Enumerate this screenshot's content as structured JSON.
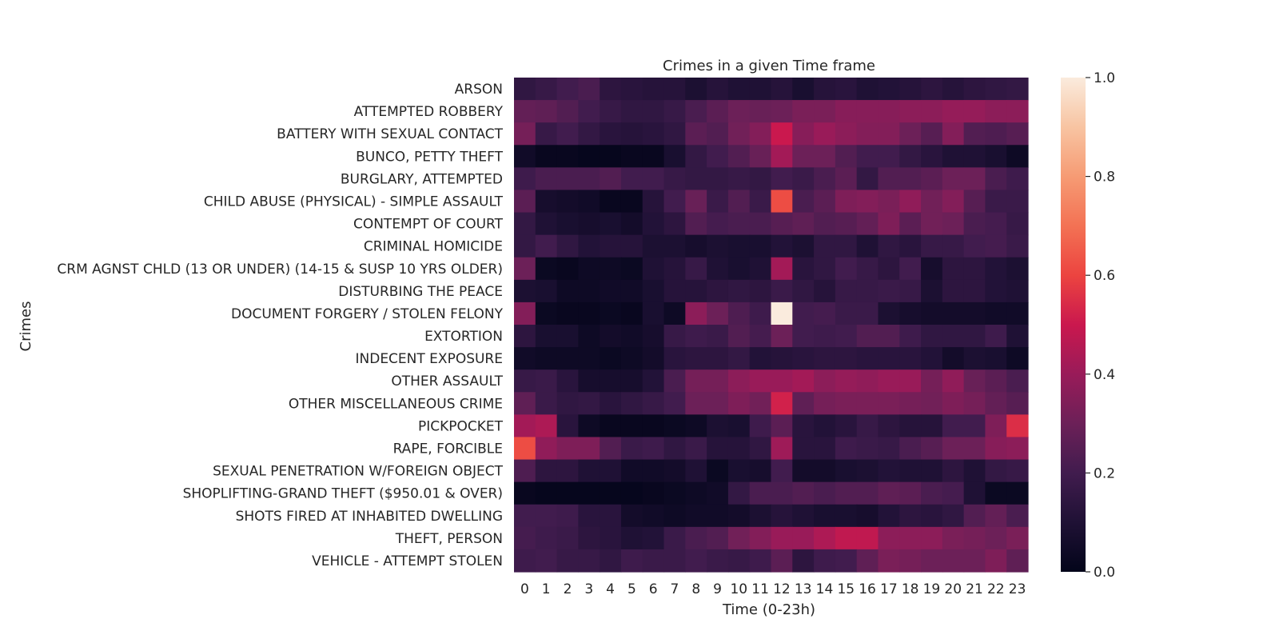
{
  "chart_data": {
    "type": "heatmap",
    "title": "Crimes in a given Time frame",
    "xlabel": "Time (0-23h)",
    "ylabel": "Crimes",
    "x": [
      "0",
      "1",
      "2",
      "3",
      "4",
      "5",
      "6",
      "7",
      "8",
      "9",
      "10",
      "11",
      "12",
      "13",
      "14",
      "15",
      "16",
      "17",
      "18",
      "19",
      "20",
      "21",
      "22",
      "23"
    ],
    "y": [
      "ARSON",
      "ATTEMPTED ROBBERY",
      "BATTERY WITH SEXUAL CONTACT",
      "BUNCO, PETTY THEFT",
      "BURGLARY, ATTEMPTED",
      "CHILD ABUSE (PHYSICAL) - SIMPLE ASSAULT",
      "CONTEMPT OF COURT",
      "CRIMINAL HOMICIDE",
      "CRM AGNST CHLD (13 OR UNDER) (14-15 & SUSP 10 YRS OLDER)",
      "DISTURBING THE PEACE",
      "DOCUMENT FORGERY / STOLEN FELONY",
      "EXTORTION",
      "INDECENT EXPOSURE",
      "OTHER ASSAULT",
      "OTHER MISCELLANEOUS CRIME",
      "PICKPOCKET",
      "RAPE, FORCIBLE",
      "SEXUAL PENETRATION W/FOREIGN OBJECT",
      "SHOPLIFTING-GRAND THEFT ($950.01 & OVER)",
      "SHOTS FIRED AT INHABITED DWELLING",
      "THEFT, PERSON",
      "VEHICLE - ATTEMPT STOLEN"
    ],
    "values": [
      [
        0.15,
        0.17,
        0.2,
        0.22,
        0.14,
        0.13,
        0.12,
        0.12,
        0.09,
        0.12,
        0.1,
        0.1,
        0.12,
        0.08,
        0.12,
        0.13,
        0.1,
        0.11,
        0.12,
        0.14,
        0.12,
        0.14,
        0.15,
        0.16
      ],
      [
        0.28,
        0.27,
        0.24,
        0.2,
        0.17,
        0.15,
        0.15,
        0.17,
        0.22,
        0.26,
        0.3,
        0.29,
        0.3,
        0.33,
        0.33,
        0.36,
        0.36,
        0.36,
        0.37,
        0.37,
        0.39,
        0.39,
        0.37,
        0.37
      ],
      [
        0.32,
        0.17,
        0.2,
        0.16,
        0.13,
        0.12,
        0.13,
        0.15,
        0.26,
        0.24,
        0.31,
        0.35,
        0.5,
        0.36,
        0.4,
        0.37,
        0.35,
        0.35,
        0.3,
        0.25,
        0.35,
        0.24,
        0.23,
        0.25
      ],
      [
        0.05,
        0.02,
        0.02,
        0.01,
        0.01,
        0.02,
        0.02,
        0.08,
        0.16,
        0.2,
        0.24,
        0.29,
        0.42,
        0.3,
        0.3,
        0.24,
        0.2,
        0.2,
        0.16,
        0.13,
        0.1,
        0.1,
        0.08,
        0.04
      ],
      [
        0.19,
        0.22,
        0.22,
        0.22,
        0.24,
        0.2,
        0.2,
        0.17,
        0.16,
        0.16,
        0.17,
        0.16,
        0.2,
        0.18,
        0.22,
        0.26,
        0.16,
        0.24,
        0.24,
        0.26,
        0.3,
        0.3,
        0.22,
        0.19
      ],
      [
        0.26,
        0.07,
        0.06,
        0.05,
        0.02,
        0.02,
        0.12,
        0.2,
        0.29,
        0.18,
        0.24,
        0.18,
        0.62,
        0.22,
        0.26,
        0.34,
        0.35,
        0.33,
        0.38,
        0.31,
        0.35,
        0.25,
        0.18,
        0.18
      ],
      [
        0.16,
        0.1,
        0.08,
        0.07,
        0.08,
        0.06,
        0.11,
        0.14,
        0.24,
        0.21,
        0.22,
        0.22,
        0.25,
        0.27,
        0.24,
        0.25,
        0.28,
        0.34,
        0.26,
        0.31,
        0.3,
        0.22,
        0.21,
        0.17
      ],
      [
        0.16,
        0.2,
        0.15,
        0.11,
        0.12,
        0.12,
        0.09,
        0.09,
        0.07,
        0.09,
        0.08,
        0.08,
        0.11,
        0.09,
        0.15,
        0.15,
        0.1,
        0.15,
        0.13,
        0.17,
        0.17,
        0.2,
        0.21,
        0.18
      ],
      [
        0.3,
        0.03,
        0.02,
        0.04,
        0.04,
        0.03,
        0.1,
        0.12,
        0.17,
        0.1,
        0.08,
        0.1,
        0.42,
        0.13,
        0.15,
        0.2,
        0.17,
        0.14,
        0.2,
        0.07,
        0.14,
        0.14,
        0.11,
        0.09
      ],
      [
        0.09,
        0.08,
        0.04,
        0.04,
        0.05,
        0.05,
        0.08,
        0.12,
        0.12,
        0.14,
        0.15,
        0.14,
        0.18,
        0.15,
        0.12,
        0.17,
        0.17,
        0.18,
        0.17,
        0.09,
        0.14,
        0.14,
        0.11,
        0.1
      ],
      [
        0.35,
        0.03,
        0.02,
        0.02,
        0.03,
        0.02,
        0.08,
        0.04,
        0.37,
        0.3,
        0.23,
        0.19,
        1.0,
        0.2,
        0.21,
        0.18,
        0.18,
        0.09,
        0.07,
        0.06,
        0.06,
        0.06,
        0.05,
        0.05
      ],
      [
        0.14,
        0.08,
        0.08,
        0.04,
        0.06,
        0.05,
        0.07,
        0.17,
        0.19,
        0.18,
        0.24,
        0.21,
        0.3,
        0.2,
        0.19,
        0.2,
        0.24,
        0.24,
        0.19,
        0.15,
        0.15,
        0.15,
        0.19,
        0.1
      ],
      [
        0.05,
        0.04,
        0.04,
        0.04,
        0.03,
        0.04,
        0.06,
        0.13,
        0.14,
        0.14,
        0.16,
        0.11,
        0.12,
        0.13,
        0.14,
        0.14,
        0.13,
        0.13,
        0.13,
        0.11,
        0.06,
        0.09,
        0.08,
        0.04
      ],
      [
        0.17,
        0.18,
        0.13,
        0.07,
        0.07,
        0.07,
        0.11,
        0.22,
        0.32,
        0.32,
        0.37,
        0.4,
        0.4,
        0.42,
        0.37,
        0.39,
        0.38,
        0.4,
        0.4,
        0.32,
        0.38,
        0.29,
        0.26,
        0.22
      ],
      [
        0.27,
        0.18,
        0.15,
        0.16,
        0.13,
        0.15,
        0.17,
        0.2,
        0.3,
        0.3,
        0.34,
        0.31,
        0.52,
        0.27,
        0.32,
        0.33,
        0.33,
        0.33,
        0.32,
        0.31,
        0.34,
        0.32,
        0.28,
        0.25
      ],
      [
        0.42,
        0.44,
        0.13,
        0.04,
        0.02,
        0.02,
        0.02,
        0.03,
        0.04,
        0.09,
        0.08,
        0.19,
        0.26,
        0.13,
        0.11,
        0.13,
        0.17,
        0.14,
        0.12,
        0.12,
        0.2,
        0.2,
        0.34,
        0.55
      ],
      [
        0.62,
        0.38,
        0.34,
        0.34,
        0.24,
        0.18,
        0.19,
        0.15,
        0.18,
        0.12,
        0.12,
        0.15,
        0.41,
        0.13,
        0.13,
        0.19,
        0.18,
        0.17,
        0.22,
        0.25,
        0.3,
        0.3,
        0.36,
        0.37
      ],
      [
        0.23,
        0.14,
        0.14,
        0.1,
        0.1,
        0.05,
        0.05,
        0.06,
        0.1,
        0.03,
        0.08,
        0.07,
        0.2,
        0.06,
        0.06,
        0.08,
        0.09,
        0.11,
        0.1,
        0.1,
        0.14,
        0.1,
        0.16,
        0.17
      ],
      [
        0.02,
        0.01,
        0.01,
        0.01,
        0.01,
        0.01,
        0.02,
        0.03,
        0.04,
        0.05,
        0.16,
        0.22,
        0.22,
        0.24,
        0.22,
        0.24,
        0.24,
        0.27,
        0.26,
        0.22,
        0.21,
        0.1,
        0.03,
        0.03
      ],
      [
        0.2,
        0.2,
        0.19,
        0.13,
        0.13,
        0.06,
        0.05,
        0.04,
        0.05,
        0.05,
        0.06,
        0.09,
        0.12,
        0.1,
        0.08,
        0.08,
        0.07,
        0.11,
        0.14,
        0.13,
        0.15,
        0.24,
        0.28,
        0.22
      ],
      [
        0.21,
        0.19,
        0.18,
        0.14,
        0.13,
        0.1,
        0.11,
        0.18,
        0.22,
        0.24,
        0.31,
        0.35,
        0.4,
        0.4,
        0.44,
        0.48,
        0.48,
        0.37,
        0.37,
        0.37,
        0.33,
        0.32,
        0.3,
        0.33
      ],
      [
        0.19,
        0.2,
        0.17,
        0.17,
        0.15,
        0.19,
        0.18,
        0.18,
        0.2,
        0.18,
        0.17,
        0.19,
        0.26,
        0.14,
        0.19,
        0.2,
        0.27,
        0.33,
        0.32,
        0.3,
        0.3,
        0.3,
        0.34,
        0.27
      ]
    ],
    "colorbar": {
      "min": 0,
      "max": 1,
      "ticks": [
        "0.0",
        "0.2",
        "0.4",
        "0.6",
        "0.8",
        "1.0"
      ],
      "colormap": "rocket"
    },
    "grid": false
  }
}
